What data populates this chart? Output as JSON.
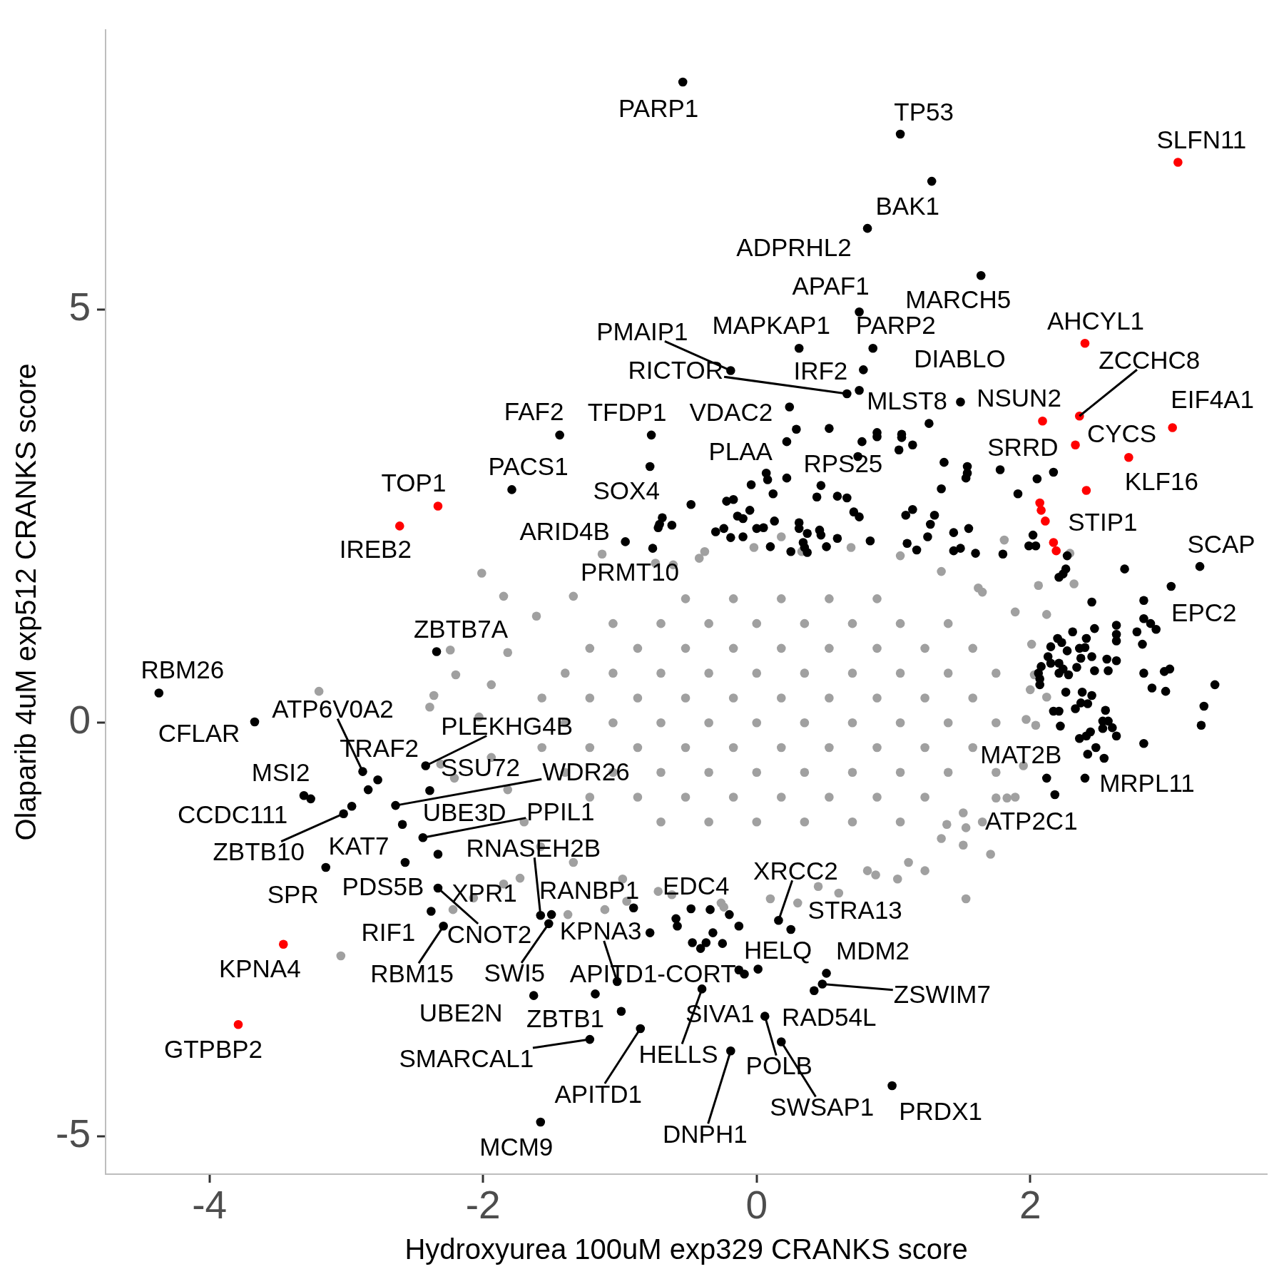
{
  "chart_data": {
    "type": "scatter",
    "xlabel": "Hydroxyurea 100uM exp329 CRANKS score",
    "ylabel": "Olaparib 4uM exp512 CRANKS score",
    "xlim": [
      -4.76,
      3.73
    ],
    "ylim": [
      -5.46,
      8.38
    ],
    "xticks": [
      -4,
      -2,
      0,
      2
    ],
    "yticks": [
      -5,
      0,
      5
    ],
    "marker": "circle",
    "series": [
      {
        "color": "#a0a0a0",
        "x": [
          -2.01,
          -3.2,
          -3.04,
          1.53,
          -1.13,
          -1.34,
          -1.61,
          -1.82,
          -1.94,
          -2.03,
          -1.94,
          -1.82,
          -1.7,
          -1.58,
          -1.34,
          -0.98,
          -0.62,
          -0.26,
          0.1,
          0.45,
          0.81,
          1.11,
          1.35,
          1.65,
          1.83,
          1.95,
          2.04,
          2.0,
          2.01,
          1.89,
          1.65,
          1.35,
          1.05,
          0.69,
          0.33,
          -0.02,
          -0.38,
          -0.74,
          1.71,
          1.23,
          -2.39,
          -2.36,
          -2.2,
          -1.85,
          -2.24,
          -2.31,
          -2.21,
          -2.22,
          -2.07,
          -1.85,
          -1.73,
          -1.38,
          -1.11,
          -0.95,
          1.03,
          0.87,
          0.6,
          0.3,
          -0.24,
          -0.72,
          1.81,
          2.29,
          2.32,
          2.06,
          2.12,
          1.62,
          0.18,
          -0.42,
          -0.61,
          1.89,
          1.75,
          1.51,
          1.53,
          1.51,
          1.39,
          2.12,
          2.03,
          1.97,
          -0.7,
          -0.35,
          0,
          0.35,
          0.7,
          1.05,
          -1.22,
          -0.87,
          -0.52,
          -0.17,
          0.18,
          0.53,
          0.88,
          1.23,
          -1.4,
          -1.05,
          -0.7,
          -0.35,
          0,
          0.35,
          0.7,
          1.05,
          1.4,
          1.75,
          -1.57,
          -1.22,
          -0.87,
          -0.52,
          -0.17,
          0.18,
          0.53,
          0.88,
          1.23,
          1.58,
          -1.4,
          -1.05,
          -0.7,
          -0.35,
          0,
          0.35,
          0.7,
          1.05,
          1.4,
          1.75,
          -1.57,
          -1.22,
          -0.87,
          -0.52,
          -0.17,
          0.18,
          0.53,
          0.88,
          1.23,
          1.58,
          -1.4,
          -1.05,
          -0.7,
          -0.35,
          0,
          0.35,
          0.7,
          1.05,
          1.4,
          1.75,
          -1.22,
          -0.87,
          -0.52,
          -0.17,
          0.18,
          0.53,
          0.88,
          1.23,
          1.58,
          -1.05,
          -0.7,
          -0.35,
          0,
          0.35,
          0.7,
          1.05,
          1.4,
          -0.52,
          -0.17,
          0.18,
          0.53,
          0.88
        ],
        "values": [
          1.81,
          0.38,
          -2.82,
          -2.13,
          2.04,
          1.53,
          1.29,
          0.85,
          0.46,
          0.07,
          -0.42,
          -0.81,
          -1.2,
          -1.5,
          -1.69,
          -1.89,
          -2.08,
          -2.18,
          -2.13,
          -1.98,
          -1.79,
          -1.69,
          -1.4,
          -1.2,
          -0.91,
          -0.52,
          -0.03,
          0.4,
          0.95,
          1.34,
          1.58,
          1.83,
          2.02,
          2.12,
          2.07,
          2.12,
          2.07,
          1.93,
          -1.59,
          -1.79,
          0.19,
          0.33,
          0.58,
          1.53,
          0.88,
          -0.5,
          -0.67,
          -2.26,
          -2.12,
          -1.95,
          -1.88,
          -2.32,
          -2.26,
          -2.16,
          -1.89,
          -1.84,
          -2.06,
          -2.18,
          -2.23,
          -2.04,
          2.21,
          2.05,
          1.68,
          1.66,
          1.31,
          1.63,
          2.25,
          1.99,
          1.91,
          -0.9,
          -0.91,
          -1.09,
          -1.27,
          -1.48,
          -1.23,
          0.31,
          0.58,
          0.04,
          -1.2,
          -1.2,
          -1.2,
          -1.2,
          -1.2,
          -1.2,
          -0.9,
          -0.9,
          -0.9,
          -0.9,
          -0.9,
          -0.9,
          -0.9,
          -0.9,
          -0.6,
          -0.6,
          -0.6,
          -0.6,
          -0.6,
          -0.6,
          -0.6,
          -0.6,
          -0.6,
          -0.6,
          -0.3,
          -0.3,
          -0.3,
          -0.3,
          -0.3,
          -0.3,
          -0.3,
          -0.3,
          -0.3,
          -0.3,
          0,
          0,
          0,
          0,
          0,
          0,
          0,
          0,
          0,
          0,
          0.3,
          0.3,
          0.3,
          0.3,
          0.3,
          0.3,
          0.3,
          0.3,
          0.3,
          0.3,
          0.6,
          0.6,
          0.6,
          0.6,
          0.6,
          0.6,
          0.6,
          0.6,
          0.6,
          0.6,
          0.9,
          0.9,
          0.9,
          0.9,
          0.9,
          0.9,
          0.9,
          0.9,
          0.9,
          1.2,
          1.2,
          1.2,
          1.2,
          1.2,
          1.2,
          1.2,
          1.2,
          1.5,
          1.5,
          1.5,
          1.5,
          1.5
        ]
      },
      {
        "color": "#000000",
        "x": [
          -0.54,
          1.05,
          1.28,
          0.81,
          1.64,
          0.75,
          0.31,
          0.85,
          0.78,
          -0.19,
          0.66,
          0.75,
          1.49,
          0.24,
          1.26,
          0.29,
          0.53,
          0.88,
          1.06,
          -1.44,
          -0.77,
          -0.78,
          -1.79,
          -0.96,
          -0.76,
          0.07,
          0.47,
          2.05,
          0.22,
          0.77,
          0.88,
          1.06,
          1.14,
          1.04,
          0.74,
          1.37,
          1.54,
          1.54,
          1.53,
          1.78,
          2.17,
          1.91,
          1.35,
          -0.48,
          -0.71,
          -0.69,
          -0.62,
          -0.72,
          -0.3,
          -0.24,
          -0.19,
          -0.1,
          -0.22,
          -0.17,
          -0.14,
          -0.1,
          -0.05,
          -0.04,
          0.08,
          0.12,
          0.22,
          0.0,
          0.05,
          0.13,
          0.1,
          0.25,
          0.31,
          0.31,
          0.37,
          0.34,
          0.35,
          0.37,
          0.46,
          0.47,
          0.51,
          0.59,
          0.44,
          0.59,
          0.66,
          0.71,
          0.75,
          0.83,
          1.09,
          1.14,
          1.3,
          1.27,
          1.25,
          1.1,
          1.17,
          1.44,
          1.55,
          1.44,
          1.49,
          1.6,
          1.8,
          2.02,
          1.99,
          2.04,
          2.27,
          2.26,
          2.21,
          2.24,
          2.69,
          3.03,
          3.24,
          2.45,
          2.83,
          2.83,
          2.88,
          2.92,
          2.63,
          2.63,
          2.63,
          2.47,
          2.31,
          2.2,
          2.15,
          2.23,
          2.41,
          2.36,
          2.4,
          2.27,
          2.13,
          2.15,
          2.45,
          2.37,
          2.56,
          2.63,
          2.78,
          2.82,
          2.08,
          2.06,
          2.07,
          2.07,
          2.21,
          2.24,
          2.21,
          2.28,
          2.34,
          2.47,
          2.57,
          2.83,
          2.98,
          3.02,
          2.89,
          2.99,
          3.35,
          2.26,
          2.38,
          2.45,
          2.37,
          2.42,
          2.33,
          2.17,
          2.21,
          2.22,
          2.55,
          2.53,
          2.57,
          2.53,
          2.6,
          2.63,
          2.44,
          2.41,
          2.36,
          2.48,
          2.42,
          2.54,
          2.83,
          3.27,
          3.25,
          2.12,
          2.4,
          2.18,
          -2.34,
          -4.37,
          -3.67,
          -2.88,
          -2.77,
          -2.84,
          -2.42,
          -2.39,
          -2.64,
          -3.31,
          -3.26,
          -3.02,
          -2.96,
          -2.59,
          -2.44,
          -2.33,
          -2.57,
          -3.15,
          -2.33,
          -2.38,
          -2.29,
          -1.58,
          -1.5,
          -1.52,
          -0.9,
          -1.02,
          -1.63,
          -1.18,
          -0.99,
          -1.22,
          -0.85,
          -1.58,
          0.16,
          0.25,
          -0.48,
          -0.34,
          -0.2,
          -0.59,
          -0.58,
          -0.78,
          -0.32,
          -0.13,
          -0.47,
          -0.41,
          -0.37,
          -0.25,
          0.01,
          -0.13,
          -0.09,
          -0.4,
          0.06,
          0.18,
          -0.19,
          0.51,
          0.48,
          0.42,
          0.99
        ],
        "values": [
          7.75,
          7.12,
          6.55,
          5.98,
          5.41,
          4.97,
          4.53,
          4.53,
          4.27,
          4.26,
          3.98,
          4.02,
          3.88,
          3.82,
          3.62,
          3.55,
          3.56,
          3.51,
          3.49,
          3.48,
          3.48,
          3.1,
          2.82,
          2.19,
          2.11,
          3.02,
          2.87,
          2.95,
          3.4,
          3.4,
          3.46,
          3.45,
          3.36,
          3.3,
          3.22,
          3.15,
          3.1,
          3.02,
          2.96,
          3.06,
          3.03,
          2.77,
          2.83,
          2.64,
          2.4,
          2.48,
          2.39,
          2.36,
          2.31,
          2.35,
          2.24,
          2.25,
          2.68,
          2.7,
          2.5,
          2.47,
          2.57,
          2.88,
          2.94,
          2.77,
          2.96,
          2.35,
          2.36,
          2.44,
          2.13,
          2.07,
          2.42,
          2.35,
          2.29,
          2.18,
          2.12,
          2.06,
          2.33,
          2.27,
          2.13,
          2.23,
          2.73,
          2.74,
          2.72,
          2.55,
          2.49,
          2.2,
          2.51,
          2.58,
          2.51,
          2.4,
          2.25,
          2.17,
          2.09,
          2.3,
          2.35,
          2.08,
          2.11,
          2.05,
          2.04,
          2.27,
          2.14,
          2.14,
          2.02,
          1.86,
          1.76,
          1.8,
          1.86,
          1.65,
          1.89,
          1.46,
          1.48,
          1.26,
          1.2,
          1.13,
          1.18,
          1.07,
          0.99,
          1.14,
          1.1,
          1.02,
          0.92,
          0.97,
          1.02,
          0.9,
          0.91,
          0.87,
          0.8,
          0.72,
          0.8,
          0.78,
          0.77,
          0.75,
          1.1,
          0.95,
          0.68,
          0.6,
          0.53,
          0.46,
          0.72,
          0.65,
          0.6,
          0.58,
          0.67,
          0.63,
          0.63,
          0.6,
          0.62,
          0.65,
          0.42,
          0.38,
          0.46,
          0.37,
          0.37,
          0.33,
          0.24,
          0.23,
          0.17,
          0.14,
          0.14,
          -0.04,
          0.15,
          0.02,
          0.02,
          -0.07,
          -0.06,
          -0.16,
          -0.11,
          -0.16,
          -0.19,
          -0.3,
          -0.38,
          -0.43,
          -0.25,
          0.2,
          -0.03,
          -0.67,
          -0.67,
          -0.87,
          0.86,
          0.36,
          0.01,
          -0.59,
          -0.69,
          -0.81,
          -0.52,
          -0.82,
          -1.0,
          -0.88,
          -0.92,
          -1.1,
          -1.01,
          -1.23,
          -1.39,
          -1.59,
          -1.69,
          -1.75,
          -2.0,
          -2.28,
          -2.46,
          -2.33,
          -2.32,
          -2.43,
          -2.24,
          -3.13,
          -3.3,
          -3.28,
          -3.49,
          -3.83,
          -3.7,
          -4.83,
          -2.39,
          -2.5,
          -2.25,
          -2.26,
          -2.32,
          -2.37,
          -2.46,
          -2.54,
          -2.54,
          -2.46,
          -2.66,
          -2.73,
          -2.66,
          -2.67,
          -2.98,
          -2.99,
          -3.04,
          -3.22,
          -3.55,
          -3.86,
          -3.97,
          -3.03,
          -3.16,
          -3.24,
          -4.39
        ]
      },
      {
        "color": "#ff0000",
        "x": [
          3.08,
          2.4,
          2.09,
          2.36,
          3.04,
          2.33,
          2.72,
          2.41,
          2.07,
          2.08,
          2.11,
          2.17,
          2.19,
          -2.33,
          -2.61,
          -3.46,
          -3.79
        ],
        "values": [
          6.78,
          4.59,
          3.65,
          3.71,
          3.57,
          3.36,
          3.21,
          2.81,
          2.66,
          2.57,
          2.44,
          2.18,
          2.08,
          2.62,
          2.38,
          -2.68,
          -3.65
        ]
      }
    ],
    "annotations": [
      {
        "text": "PARP1",
        "x": -0.54,
        "y": 7.75
      },
      {
        "text": "TP53",
        "x": 1.05,
        "y": 7.12
      },
      {
        "text": "SLFN11",
        "x": 3.08,
        "y": 6.78
      },
      {
        "text": "BAK1",
        "x": 1.28,
        "y": 6.55
      },
      {
        "text": "ADPRHL2",
        "x": 0.81,
        "y": 5.98
      },
      {
        "text": "MARCH5",
        "x": 1.64,
        "y": 5.41
      },
      {
        "text": "APAF1",
        "x": 0.75,
        "y": 4.97
      },
      {
        "text": "PARP2",
        "x": 0.85,
        "y": 4.53
      },
      {
        "text": "MAPKAP1",
        "x": 0.31,
        "y": 4.53
      },
      {
        "text": "IRF2",
        "x": 0.78,
        "y": 4.27
      },
      {
        "text": "PMAIP1",
        "x": -0.19,
        "y": 4.26
      },
      {
        "text": "RICTOR",
        "x": 0.66,
        "y": 3.98
      },
      {
        "text": "MLST8",
        "x": 0.75,
        "y": 4.02
      },
      {
        "text": "DIABLO",
        "x": 1.49,
        "y": 3.88
      },
      {
        "text": "NSUN2",
        "x": 2.09,
        "y": 3.65
      },
      {
        "text": "AHCYL1",
        "x": 2.4,
        "y": 4.59
      },
      {
        "text": "ZCCHC8",
        "x": 2.36,
        "y": 3.71
      },
      {
        "text": "EIF4A1",
        "x": 3.04,
        "y": 3.57
      },
      {
        "text": "VDAC2",
        "x": 0.24,
        "y": 3.82
      },
      {
        "text": "FAF2",
        "x": -1.44,
        "y": 3.48
      },
      {
        "text": "TFDP1",
        "x": -0.77,
        "y": 3.48
      },
      {
        "text": "PLAA",
        "x": 0.07,
        "y": 3.02
      },
      {
        "text": "RPS25",
        "x": 0.47,
        "y": 2.87
      },
      {
        "text": "SOX4",
        "x": -0.78,
        "y": 3.1
      },
      {
        "text": "PACS1",
        "x": -1.79,
        "y": 2.82
      },
      {
        "text": "TOP1",
        "x": -2.33,
        "y": 2.62
      },
      {
        "text": "IREB2",
        "x": -2.61,
        "y": 2.38
      },
      {
        "text": "ARID4B",
        "x": -0.96,
        "y": 2.19
      },
      {
        "text": "PRMT10",
        "x": -0.76,
        "y": 2.11
      },
      {
        "text": "SRRD",
        "x": 2.05,
        "y": 2.95
      },
      {
        "text": "CYCS",
        "x": 2.33,
        "y": 3.36
      },
      {
        "text": "KLF16",
        "x": 2.72,
        "y": 3.21
      },
      {
        "text": "STIP1",
        "x": 2.41,
        "y": 2.81
      },
      {
        "text": "SCAP",
        "x": 3.24,
        "y": 1.89
      },
      {
        "text": "EPC2",
        "x": 3.03,
        "y": 1.65
      },
      {
        "text": "MAT2B",
        "x": 2.12,
        "y": -0.67
      },
      {
        "text": "MRPL11",
        "x": 2.4,
        "y": -0.67
      },
      {
        "text": "ATP2C1",
        "x": 2.18,
        "y": -0.87
      },
      {
        "text": "ZBTB7A",
        "x": -2.34,
        "y": 0.86
      },
      {
        "text": "RBM26",
        "x": -4.37,
        "y": 0.36
      },
      {
        "text": "CFLAR",
        "x": -3.67,
        "y": 0.01
      },
      {
        "text": "ATP6V0A2",
        "x": -2.88,
        "y": -0.59
      },
      {
        "text": "TRAF2",
        "x": -2.77,
        "y": -0.69
      },
      {
        "text": "PLEKHG4B",
        "x": -2.42,
        "y": -0.52
      },
      {
        "text": "SSU72",
        "x": -2.39,
        "y": -0.82
      },
      {
        "text": "WDR26",
        "x": -2.64,
        "y": -1.0
      },
      {
        "text": "MSI2",
        "x": -3.26,
        "y": -0.92
      },
      {
        "text": "CCDC111",
        "x": -3.31,
        "y": -0.88
      },
      {
        "text": "ZBTB10",
        "x": -3.02,
        "y": -1.1
      },
      {
        "text": "KAT7",
        "x": -2.57,
        "y": -1.69
      },
      {
        "text": "UBE3D",
        "x": -2.59,
        "y": -1.23
      },
      {
        "text": "PPIL1",
        "x": -2.44,
        "y": -1.39
      },
      {
        "text": "RNASEH2B",
        "x": -1.58,
        "y": -2.33
      },
      {
        "text": "SPR",
        "x": -3.15,
        "y": -1.75
      },
      {
        "text": "PDS5B",
        "x": -2.33,
        "y": -2.0
      },
      {
        "text": "XPR1",
        "x": -2.33,
        "y": -2.0
      },
      {
        "text": "RIF1",
        "x": -2.38,
        "y": -2.28
      },
      {
        "text": "CNOT2",
        "x": -2.33,
        "y": -2.0
      },
      {
        "text": "RBM15",
        "x": -2.29,
        "y": -2.46
      },
      {
        "text": "SWI5",
        "x": -1.52,
        "y": -2.43
      },
      {
        "text": "RANBP1",
        "x": -1.5,
        "y": -2.32
      },
      {
        "text": "KPNA3",
        "x": -1.02,
        "y": -3.13
      },
      {
        "text": "APITD1-CORT",
        "x": -0.78,
        "y": -2.54
      },
      {
        "text": "HELLS",
        "x": -0.4,
        "y": -3.22
      },
      {
        "text": "SIVA1",
        "x": 0.06,
        "y": -3.55
      },
      {
        "text": "RAD54L",
        "x": 0.06,
        "y": -3.55
      },
      {
        "text": "POLB",
        "x": 0.06,
        "y": -3.55
      },
      {
        "text": "SWSAP1",
        "x": 0.18,
        "y": -3.86
      },
      {
        "text": "DNPH1",
        "x": -0.19,
        "y": -3.97
      },
      {
        "text": "PRDX1",
        "x": 0.99,
        "y": -4.39
      },
      {
        "text": "MDM2",
        "x": 0.51,
        "y": -3.03
      },
      {
        "text": "ZSWIM7",
        "x": 0.48,
        "y": -3.16
      },
      {
        "text": "HELQ",
        "x": 0.01,
        "y": -2.98
      },
      {
        "text": "XRCC2",
        "x": 0.16,
        "y": -2.39
      },
      {
        "text": "STRA13",
        "x": 0.25,
        "y": -2.5
      },
      {
        "text": "EDC4",
        "x": -0.48,
        "y": -2.25
      },
      {
        "text": "UBE2N",
        "x": -1.63,
        "y": -3.3
      },
      {
        "text": "ZBTB1",
        "x": -1.18,
        "y": -3.28
      },
      {
        "text": "SMARCAL1",
        "x": -1.22,
        "y": -3.83
      },
      {
        "text": "APITD1",
        "x": -0.85,
        "y": -3.7
      },
      {
        "text": "MCM9",
        "x": -1.58,
        "y": -4.83
      },
      {
        "text": "KPNA4",
        "x": -3.46,
        "y": -2.68
      },
      {
        "text": "GTPBP2",
        "x": -3.79,
        "y": -3.65
      }
    ]
  }
}
